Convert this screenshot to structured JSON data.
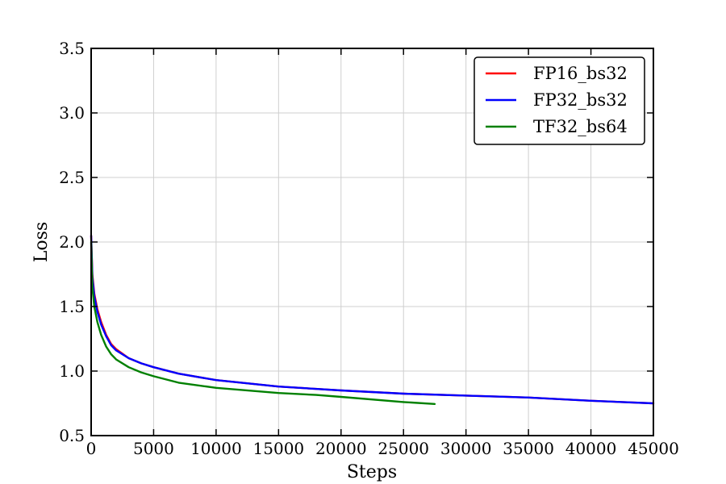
{
  "chart_data": {
    "type": "line",
    "xlabel": "Steps",
    "ylabel": "Loss",
    "xlim": [
      0,
      45000
    ],
    "ylim": [
      0.5,
      3.5
    ],
    "xticks": [
      0,
      5000,
      10000,
      15000,
      20000,
      25000,
      30000,
      35000,
      40000,
      45000
    ],
    "yticks": [
      0.5,
      1.0,
      1.5,
      2.0,
      2.5,
      3.0,
      3.5
    ],
    "xtick_labels": [
      "0",
      "5000",
      "10000",
      "15000",
      "20000",
      "25000",
      "30000",
      "35000",
      "40000",
      "45000"
    ],
    "ytick_labels": [
      "0.5",
      "1.0",
      "1.5",
      "2.0",
      "2.5",
      "3.0",
      "3.5"
    ],
    "grid": true,
    "legend_position": "top-right",
    "series": [
      {
        "name": "FP16_bs32",
        "color": "#ff0000",
        "x": [
          0,
          100,
          250,
          500,
          800,
          1200,
          1600,
          2000,
          3000,
          4000,
          5000,
          7000,
          10000,
          15000,
          20000,
          25000,
          30000,
          35000,
          40000,
          45000
        ],
        "y": [
          2.05,
          1.75,
          1.6,
          1.48,
          1.38,
          1.28,
          1.21,
          1.17,
          1.1,
          1.06,
          1.03,
          0.98,
          0.93,
          0.88,
          0.85,
          0.825,
          0.81,
          0.795,
          0.77,
          0.75
        ]
      },
      {
        "name": "FP32_bs32",
        "color": "#0000ff",
        "x": [
          0,
          100,
          250,
          500,
          800,
          1200,
          1600,
          2000,
          3000,
          4000,
          5000,
          7000,
          10000,
          15000,
          20000,
          25000,
          30000,
          35000,
          40000,
          45000
        ],
        "y": [
          2.05,
          1.73,
          1.58,
          1.46,
          1.36,
          1.27,
          1.2,
          1.16,
          1.1,
          1.06,
          1.03,
          0.98,
          0.93,
          0.88,
          0.85,
          0.825,
          0.81,
          0.795,
          0.77,
          0.75
        ]
      },
      {
        "name": "TF32_bs64",
        "color": "#008000",
        "x": [
          0,
          100,
          250,
          500,
          800,
          1200,
          1600,
          2000,
          3000,
          4000,
          5000,
          7000,
          10000,
          15000,
          18000,
          20000,
          25000,
          27500
        ],
        "y": [
          2.0,
          1.65,
          1.5,
          1.38,
          1.28,
          1.19,
          1.13,
          1.09,
          1.03,
          0.99,
          0.96,
          0.91,
          0.87,
          0.83,
          0.815,
          0.8,
          0.76,
          0.745
        ]
      }
    ]
  }
}
